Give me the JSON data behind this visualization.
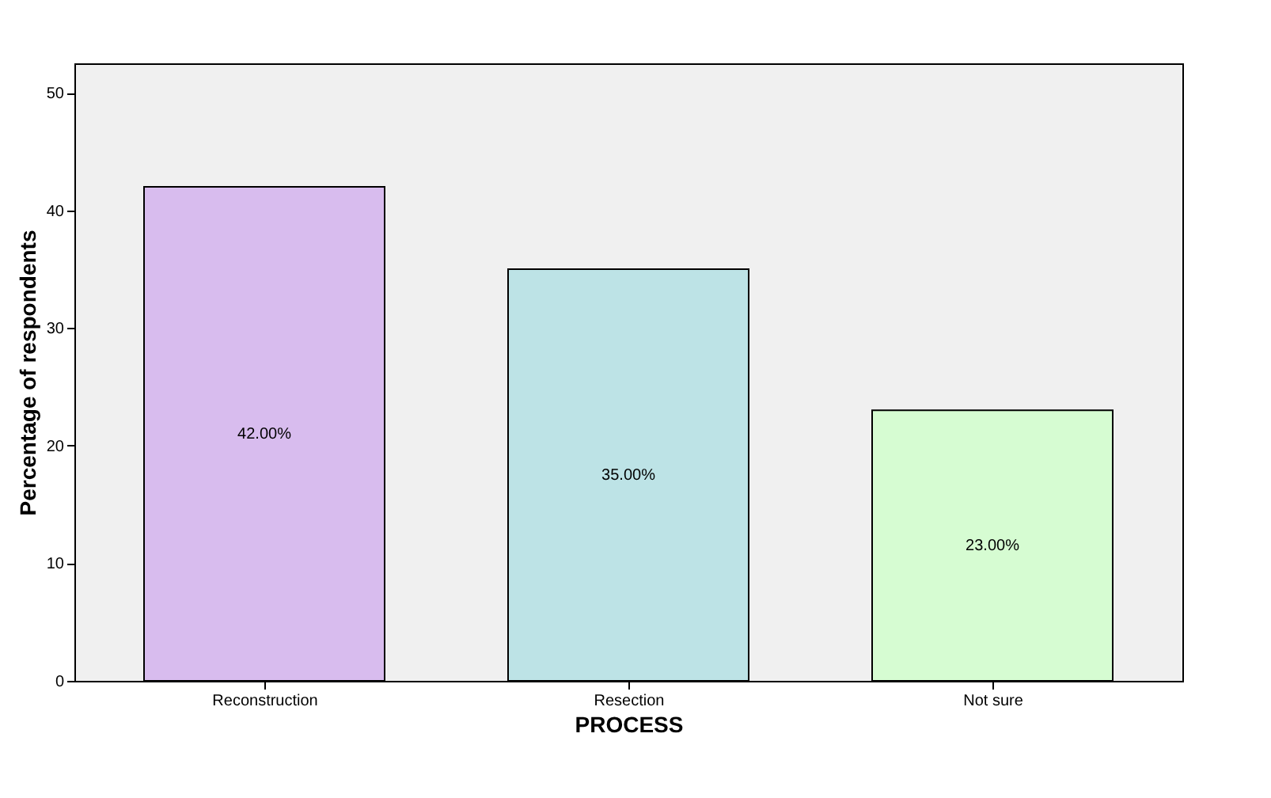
{
  "chart_data": {
    "type": "bar",
    "xlabel": "PROCESS",
    "ylabel": "Percentage of respondents",
    "categories": [
      "Reconstruction",
      "Resection",
      "Not sure"
    ],
    "values": [
      42,
      35,
      23
    ],
    "colors": [
      "#d8bcee",
      "#bde3e6",
      "#d6fcd2"
    ],
    "value_labels": [
      "42.00%",
      "35.00%",
      "23.00%"
    ],
    "ylim": [
      0,
      52.5
    ],
    "yticks": [
      0,
      10,
      20,
      30,
      40,
      50
    ],
    "grid": false
  }
}
